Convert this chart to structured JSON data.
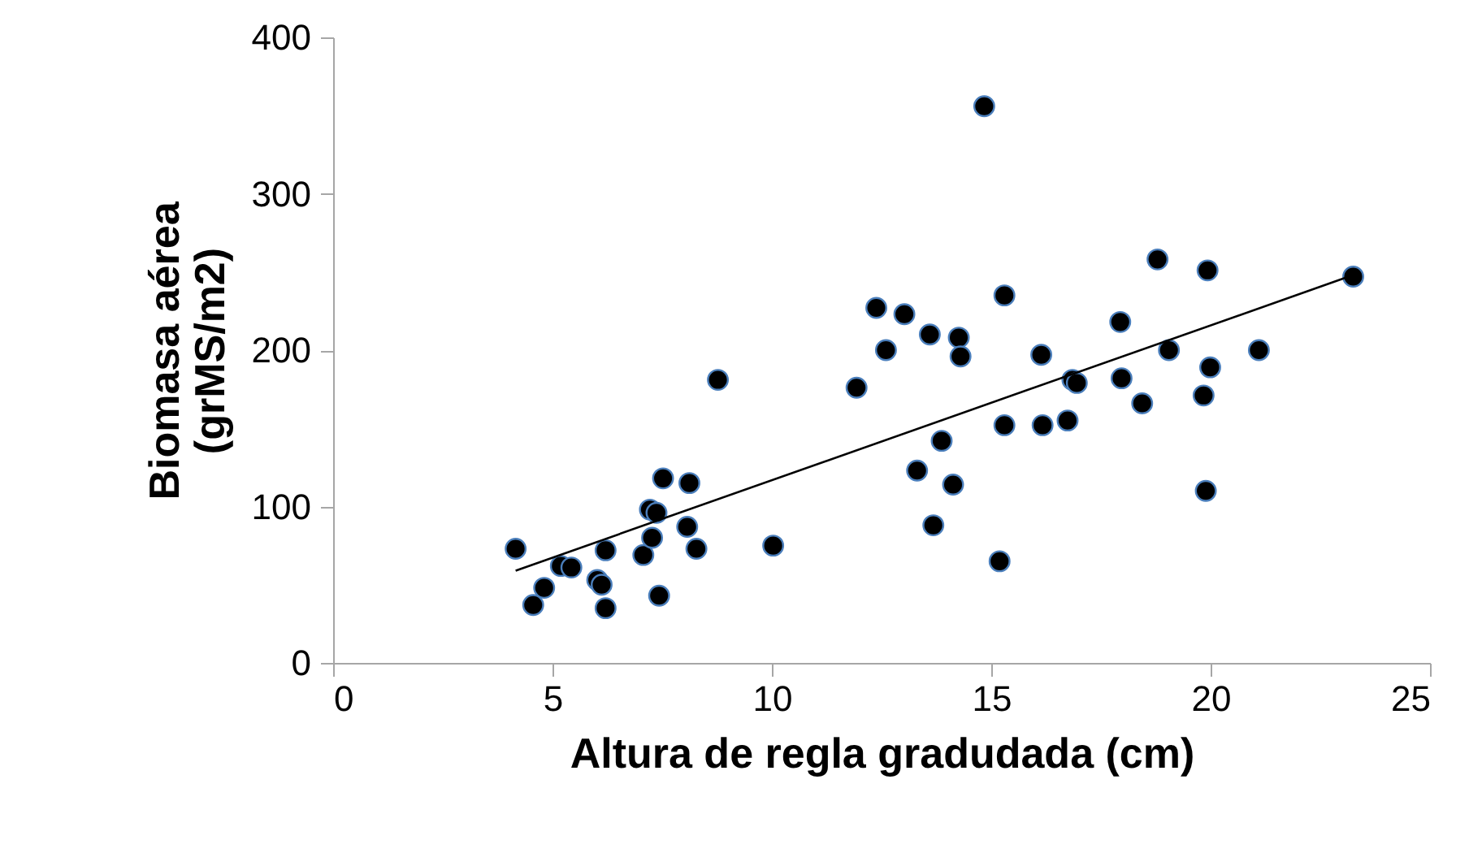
{
  "chart_data": {
    "type": "scatter",
    "xlabel": "Altura de regla gradudada (cm)",
    "ylabel": "Biomasa aérea\n(grMS/m2)",
    "xlim": [
      0,
      25
    ],
    "xticks": [
      0,
      5,
      10,
      15,
      20,
      25
    ],
    "ylim": [
      0,
      400
    ],
    "yticks": [
      0,
      100,
      200,
      300,
      400
    ],
    "grid": false,
    "legend": false,
    "marker": "circle",
    "series": [
      {
        "color": "#000000",
        "x": [
          4.16,
          4.56,
          4.81,
          5.19,
          5.43,
          6.02,
          6.12,
          6.21,
          6.21,
          7.07,
          7.22,
          7.27,
          7.37,
          7.43,
          7.52,
          8.07,
          8.12,
          8.28,
          8.77,
          10.03,
          11.93,
          12.38,
          12.6,
          13.02,
          13.31,
          13.6,
          13.68,
          13.87,
          14.13,
          14.26,
          14.3,
          14.84,
          15.19,
          15.3,
          15.3,
          16.14,
          16.17,
          16.74,
          16.85,
          16.95,
          17.94,
          17.97,
          18.44,
          18.79,
          19.05,
          19.84,
          19.89,
          19.93,
          19.99,
          21.1,
          23.25
        ],
        "values": [
          73,
          37,
          48,
          62,
          61,
          53,
          50,
          72,
          35,
          69,
          98,
          80,
          96,
          43,
          118,
          87,
          115,
          73,
          181,
          75,
          176,
          227,
          200,
          223,
          123,
          210,
          88,
          142,
          114,
          208,
          196,
          356,
          65,
          235,
          152,
          197,
          152,
          155,
          181,
          179,
          218,
          182,
          166,
          258,
          200,
          171,
          110,
          251,
          189,
          200,
          247
        ]
      },
      {
        "type": "line",
        "color": "#000000",
        "line_style": "solid",
        "marker": "none",
        "x": [
          4.16,
          23.25
        ],
        "values": [
          59,
          248
        ]
      }
    ]
  }
}
